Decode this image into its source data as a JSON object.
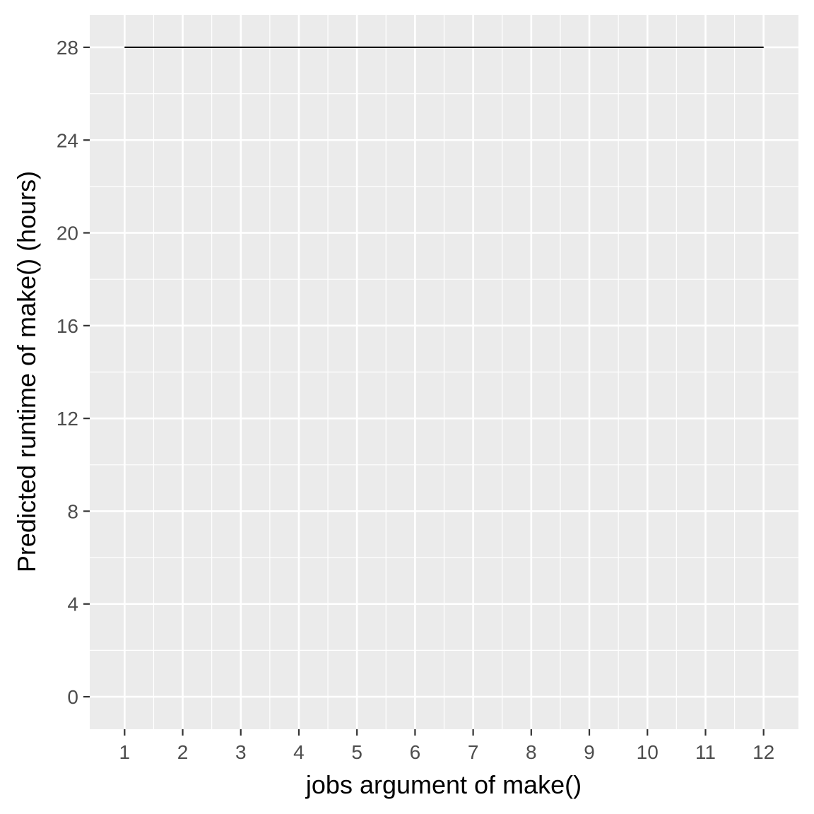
{
  "chart_data": {
    "type": "line",
    "title": "",
    "xlabel": "jobs argument of make()",
    "ylabel": "Predicted runtime of make() (hours)",
    "x_ticks": [
      1,
      2,
      3,
      4,
      5,
      6,
      7,
      8,
      9,
      10,
      11,
      12
    ],
    "y_ticks": [
      0,
      4,
      8,
      12,
      16,
      20,
      24,
      28
    ],
    "xlim": [
      0.4,
      12.6
    ],
    "ylim": [
      -1.4,
      29.4
    ],
    "grid": true,
    "legend": "none",
    "series": [
      {
        "x": [
          1,
          2,
          3,
          4,
          5,
          6,
          7,
          8,
          9,
          10,
          11,
          12
        ],
        "y": [
          28,
          28,
          28,
          28,
          28,
          28,
          28,
          28,
          28,
          28,
          28,
          28
        ]
      }
    ],
    "colors": {
      "panel_background": "#ebebeb",
      "grid": "#ffffff",
      "line": "#000000",
      "tick_text": "#4d4d4d",
      "axis_title": "#000000"
    }
  }
}
